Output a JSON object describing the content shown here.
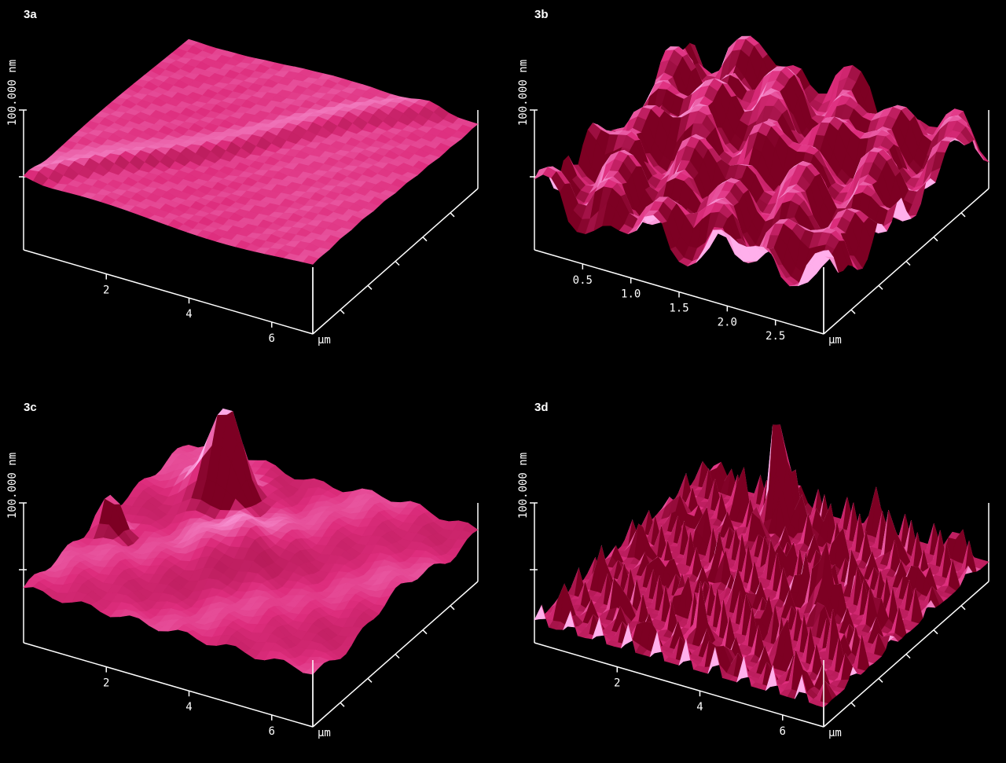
{
  "panels": [
    {
      "label": "3a",
      "z_label": "100.000 nm",
      "x_ticks": [
        "2",
        "4",
        "6"
      ],
      "x_unit": "µm"
    },
    {
      "label": "3b",
      "z_label": "100.000 nm",
      "x_ticks": [
        "0.5",
        "1.0",
        "1.5",
        "2.0",
        "2.5"
      ],
      "x_unit": "µm"
    },
    {
      "label": "3c",
      "z_label": "100.000 nm",
      "x_ticks": [
        "2",
        "4",
        "6"
      ],
      "x_unit": "µm"
    },
    {
      "label": "3d",
      "z_label": "100.000 nm",
      "x_ticks": [
        "2",
        "4",
        "6"
      ],
      "x_unit": "µm"
    }
  ]
}
